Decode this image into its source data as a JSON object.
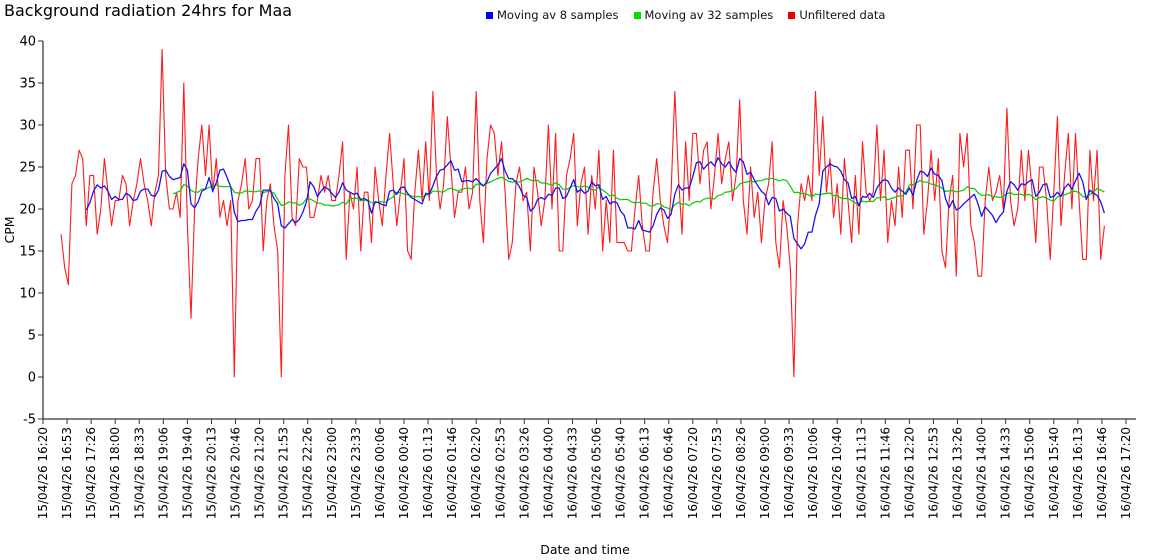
{
  "title": "Background radiation 24hrs for Maa",
  "legend": [
    {
      "label": "Moving av 8 samples",
      "color": "#0000ee"
    },
    {
      "label": "Moving av 32 samples",
      "color": "#00dd00"
    },
    {
      "label": "Unfiltered data",
      "color": "#ee0000"
    }
  ],
  "chart_data": {
    "type": "line",
    "title": "Background radiation 24hrs for Maa",
    "xlabel": "Date and time",
    "ylabel": "CPM",
    "ylim": [
      -5,
      40
    ],
    "grid": false,
    "legend_position": "top-right",
    "y_ticks": [
      40,
      35,
      30,
      25,
      20,
      15,
      10,
      5,
      0,
      -5
    ],
    "x_tick_labels": [
      "15/04/26 16:20",
      "15/04/26 16:53",
      "15/04/26 17:26",
      "15/04/26 18:00",
      "15/04/26 18:33",
      "15/04/26 19:06",
      "15/04/26 19:40",
      "15/04/26 20:13",
      "15/04/26 20:46",
      "15/04/26 21:20",
      "15/04/26 21:53",
      "15/04/26 22:26",
      "15/04/26 23:00",
      "15/04/26 23:33",
      "16/04/26 00:06",
      "16/04/26 00:40",
      "16/04/26 01:13",
      "16/04/26 01:46",
      "16/04/26 02:20",
      "16/04/26 02:53",
      "16/04/26 03:26",
      "16/04/26 04:00",
      "16/04/26 04:33",
      "16/04/26 05:06",
      "16/04/26 05:40",
      "16/04/26 06:13",
      "16/04/26 06:46",
      "16/04/26 07:20",
      "16/04/26 07:53",
      "16/04/26 08:26",
      "16/04/26 09:00",
      "16/04/26 09:33",
      "16/04/26 10:06",
      "16/04/26 10:40",
      "16/04/26 11:13",
      "16/04/26 11:46",
      "16/04/26 12:20",
      "16/04/26 12:53",
      "16/04/26 13:26",
      "16/04/26 14:00",
      "16/04/26 14:33",
      "16/04/26 15:06",
      "16/04/26 15:40",
      "16/04/26 16:13",
      "16/04/26 16:46",
      "16/04/26 17:20"
    ],
    "tick_interval_minutes": 33.333,
    "sample_interval_minutes": 5,
    "first_sample_offset_minutes": 25,
    "series": [
      {
        "name": "Unfiltered data",
        "color": "#ff1a1a",
        "values": [
          17,
          13,
          11,
          23,
          24,
          27,
          26,
          18,
          24,
          24,
          17,
          20,
          26,
          22,
          18,
          21,
          21,
          24,
          23,
          18,
          21,
          23,
          26,
          23,
          21,
          18,
          22,
          24,
          39,
          24,
          20,
          20,
          22,
          19,
          35,
          18,
          7,
          20,
          26,
          30,
          24,
          30,
          22,
          26,
          19,
          21,
          18,
          21,
          0,
          21,
          23,
          26,
          20,
          21,
          26,
          26,
          15,
          21,
          23,
          18,
          15,
          0,
          24,
          30,
          19,
          18,
          26,
          25,
          25,
          19,
          19,
          21,
          24,
          22,
          24,
          21,
          21,
          24,
          28,
          14,
          22,
          20,
          25,
          15,
          22,
          22,
          16,
          25,
          21,
          18,
          24,
          29,
          23,
          18,
          22,
          26,
          15,
          14,
          22,
          27,
          21,
          28,
          21,
          34,
          24,
          20,
          23,
          31,
          25,
          19,
          22,
          22,
          25,
          20,
          22,
          34,
          21,
          16,
          26,
          30,
          29,
          24,
          28,
          22,
          14,
          16,
          23,
          25,
          21,
          22,
          15,
          25,
          22,
          18,
          21,
          30,
          20,
          29,
          15,
          15,
          24,
          26,
          29,
          18,
          23,
          25,
          17,
          24,
          20,
          27,
          15,
          21,
          16,
          27,
          16,
          16,
          16,
          15,
          15,
          20,
          24,
          18,
          15,
          15,
          22,
          26,
          21,
          18,
          16,
          22,
          34,
          24,
          17,
          28,
          21,
          29,
          29,
          23,
          27,
          28,
          20,
          24,
          29,
          23,
          26,
          28,
          21,
          24,
          33,
          21,
          17,
          25,
          19,
          22,
          16,
          21,
          23,
          28,
          16,
          13,
          21,
          18,
          13,
          0,
          18,
          23,
          21,
          24,
          21,
          34,
          24,
          31,
          22,
          26,
          19,
          23,
          17,
          26,
          21,
          16,
          24,
          17,
          28,
          22,
          21,
          22,
          30,
          21,
          27,
          16,
          21,
          18,
          25,
          19,
          27,
          27,
          20,
          30,
          30,
          17,
          21,
          27,
          21,
          26,
          15,
          13,
          21,
          24,
          12,
          29,
          25,
          29,
          18,
          16,
          12,
          12,
          21,
          25,
          21,
          22,
          24,
          20,
          32,
          21,
          18,
          20,
          27,
          21,
          27,
          22,
          16,
          25,
          25,
          21,
          14,
          22,
          31,
          18,
          24,
          29,
          20,
          29,
          21,
          14,
          14,
          27,
          21,
          27,
          14,
          18
        ]
      },
      {
        "name": "Moving av 8 samples",
        "color": "#1515ee",
        "derived": "moving_average_of_unfiltered",
        "window": 8
      },
      {
        "name": "Moving av 32 samples",
        "color": "#00cc00",
        "derived": "moving_average_of_unfiltered",
        "window": 32
      }
    ]
  }
}
